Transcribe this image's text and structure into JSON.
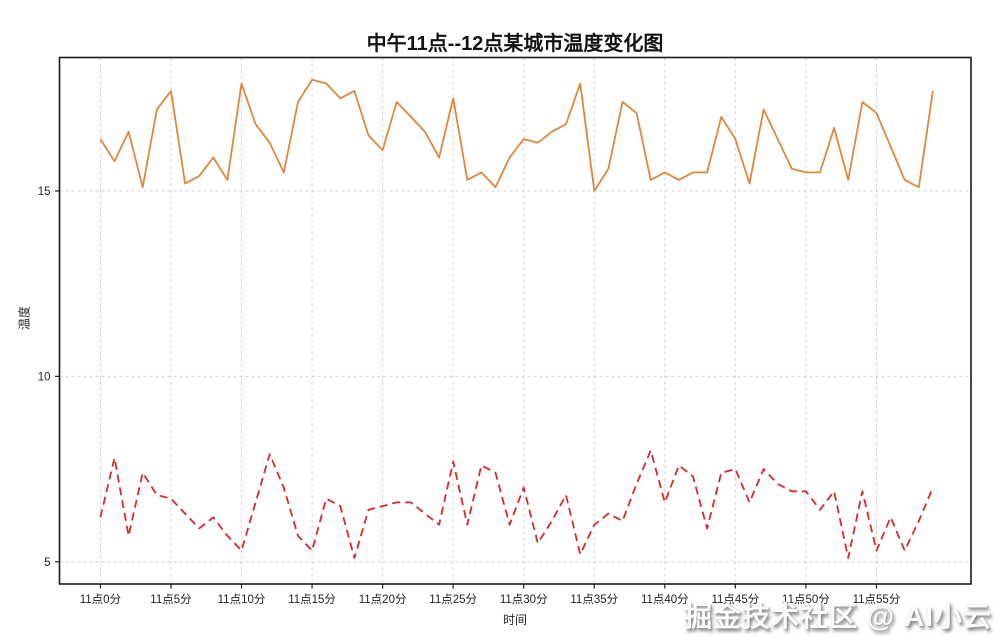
{
  "page": {
    "background": "#ffffff"
  },
  "watermark": {
    "text": "掘金技术社区 @ AI小云"
  },
  "chart_data": {
    "type": "line",
    "title": "中午11点--12点某城市温度变化图",
    "xlabel": "时间",
    "ylabel": "温度",
    "x_tick_minutes": [
      0,
      5,
      10,
      15,
      20,
      25,
      30,
      35,
      40,
      45,
      50,
      55
    ],
    "x_tick_labels": [
      "11点0分",
      "11点5分",
      "11点10分",
      "11点15分",
      "11点20分",
      "11点25分",
      "11点30分",
      "11点35分",
      "11点40分",
      "11点45分",
      "11点50分",
      "11点55分"
    ],
    "y_ticks": [
      5,
      10,
      15
    ],
    "xlim_minutes": [
      -2.9,
      61.7
    ],
    "ylim": [
      4.4,
      18.6
    ],
    "x_start_minute": 0,
    "x_step_minute": 1,
    "grid": {
      "show": true,
      "style": "dashed",
      "color": "#cfcfcf"
    },
    "axis_color": "#1a1a1a",
    "tick_label_color": "#1f1f1f",
    "legend": "none",
    "series": [
      {
        "name": "orange-solid-line",
        "color": "#e1873c",
        "line_style": "solid",
        "values": [
          16.4,
          15.8,
          16.6,
          15.1,
          17.2,
          17.7,
          15.2,
          15.4,
          15.9,
          15.3,
          17.9,
          16.8,
          16.3,
          15.5,
          17.4,
          18.0,
          17.9,
          17.5,
          17.7,
          16.5,
          16.1,
          17.4,
          17.0,
          16.6,
          15.9,
          17.5,
          15.3,
          15.5,
          15.1,
          15.9,
          16.4,
          16.3,
          16.6,
          16.8,
          17.9,
          15.0,
          15.6,
          17.4,
          17.1,
          15.3,
          15.5,
          15.3,
          15.5,
          15.5,
          17.0,
          16.4,
          15.2,
          17.2,
          16.4,
          15.6,
          15.5,
          15.5,
          16.7,
          15.3,
          17.4,
          17.1,
          16.2,
          15.3,
          15.1,
          17.7
        ]
      },
      {
        "name": "red-dashed-line",
        "color": "#d62a2a",
        "line_style": "dashed",
        "values": [
          6.2,
          7.8,
          5.7,
          7.4,
          6.8,
          6.7,
          6.3,
          5.9,
          6.2,
          5.7,
          5.3,
          6.6,
          7.9,
          7.0,
          5.7,
          5.3,
          6.7,
          6.5,
          5.1,
          6.4,
          6.5,
          6.6,
          6.6,
          6.3,
          6.0,
          7.7,
          6.0,
          7.6,
          7.4,
          6.0,
          7.0,
          5.5,
          6.1,
          6.8,
          5.2,
          6.0,
          6.3,
          6.1,
          7.1,
          8.0,
          6.6,
          7.6,
          7.3,
          5.9,
          7.4,
          7.5,
          6.6,
          7.5,
          7.1,
          6.9,
          6.9,
          6.4,
          6.9,
          5.1,
          6.9,
          5.3,
          6.2,
          5.3,
          6.1,
          7.0
        ]
      }
    ]
  }
}
